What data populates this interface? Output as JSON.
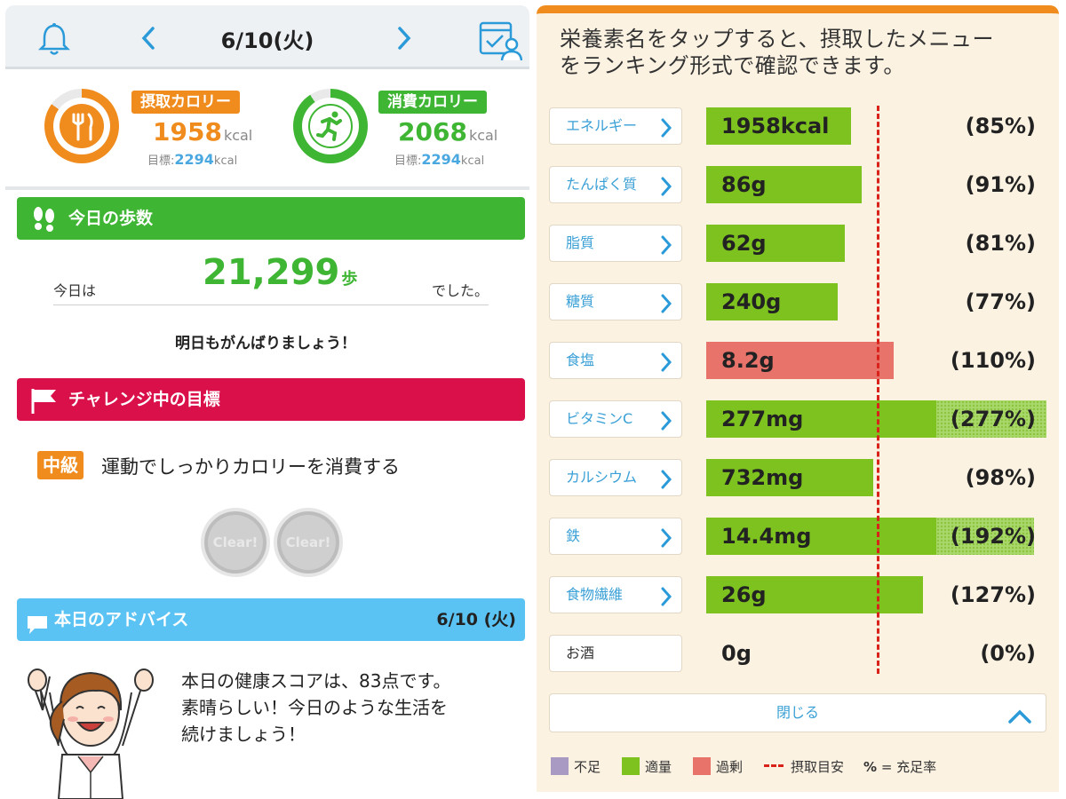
{
  "header": {
    "date": "6/10(火)"
  },
  "calories": {
    "intake": {
      "label": "摂取カロリー",
      "value": "1958",
      "unit": "kcal",
      "target_label": "目標:",
      "target": "2294",
      "target_unit": "kcal",
      "progress": 0.85
    },
    "burned": {
      "label": "消費カロリー",
      "value": "2068",
      "unit": "kcal",
      "target_label": "目標:",
      "target": "2294",
      "target_unit": "kcal",
      "progress": 0.9
    }
  },
  "steps": {
    "title": "今日の歩数",
    "prefix": "今日は",
    "value": "21,299",
    "unit": "歩",
    "suffix": "でした。",
    "cheer": "明日もがんばりましょう！"
  },
  "challenge": {
    "title": "チャレンジ中の目標",
    "level": "中級",
    "goal": "運動でしっかりカロリーを消費する",
    "clear_label": "Clear!"
  },
  "advice": {
    "title": "本日のアドバイス",
    "date": "6/10 (火)",
    "text_line1": "本日の健康スコアは、83点です。",
    "text_line2": "素晴らしい！今日のような生活を",
    "text_line3": "続けましょう！"
  },
  "nutrition": {
    "heading_line1": "栄養素名をタップすると、摂取したメニュー",
    "heading_line2": "をランキング形式で確認できます。",
    "items": [
      {
        "name": "エネルギー",
        "value": "1958kcal",
        "percent_label": "(85%)",
        "percent": 85,
        "status": "適量"
      },
      {
        "name": "たんぱく質",
        "value": "86g",
        "percent_label": "(91%)",
        "percent": 91,
        "status": "適量"
      },
      {
        "name": "脂質",
        "value": "62g",
        "percent_label": "(81%)",
        "percent": 81,
        "status": "適量"
      },
      {
        "name": "糖質",
        "value": "240g",
        "percent_label": "(77%)",
        "percent": 77,
        "status": "適量"
      },
      {
        "name": "食塩",
        "value": "8.2g",
        "percent_label": "(110%)",
        "percent": 110,
        "status": "過剰"
      },
      {
        "name": "ビタミンC",
        "value": "277mg",
        "percent_label": "(277%)",
        "percent": 277,
        "status": "適量"
      },
      {
        "name": "カルシウム",
        "value": "732mg",
        "percent_label": "(98%)",
        "percent": 98,
        "status": "適量"
      },
      {
        "name": "鉄",
        "value": "14.4mg",
        "percent_label": "(192%)",
        "percent": 192,
        "status": "適量"
      },
      {
        "name": "食物繊維",
        "value": "26g",
        "percent_label": "(127%)",
        "percent": 127,
        "status": "適量"
      },
      {
        "name": "お酒",
        "value": "0g",
        "percent_label": "(0%)",
        "percent": 0,
        "status": ""
      }
    ],
    "close_label": "閉じる",
    "legend": {
      "short": "不足",
      "adequate": "適量",
      "excess": "過剰",
      "guide": "摂取目安",
      "pct_symbol": "%",
      "pct_meaning": "= 充足率"
    }
  },
  "colors": {
    "orange": "#f08c1e",
    "green": "#3fb534",
    "bar_green": "#7dc21e",
    "bar_red": "#e8736b",
    "pink": "#d9104a",
    "sky": "#5bc3f3",
    "link_blue": "#3aa0d6",
    "short_purple": "#a99ac4"
  }
}
